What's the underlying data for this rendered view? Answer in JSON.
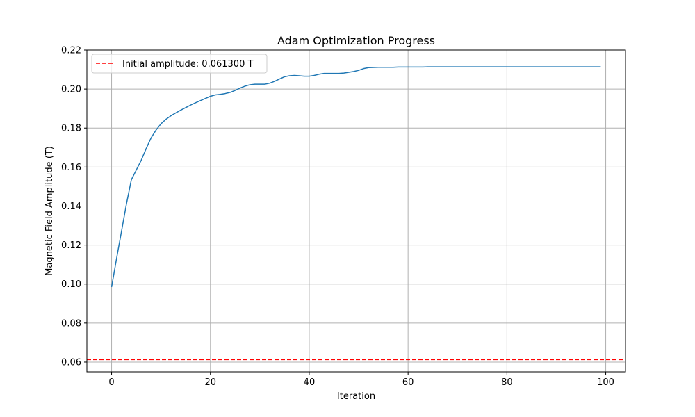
{
  "chart_data": {
    "type": "line",
    "title": "Adam Optimization Progress",
    "xlabel": "Iteration",
    "ylabel": "Magnetic Field Amplitude (T)",
    "xlim": [
      -5,
      104
    ],
    "ylim": [
      0.055,
      0.22
    ],
    "xticks": [
      0,
      20,
      40,
      60,
      80,
      100
    ],
    "xtick_labels": [
      "0",
      "20",
      "40",
      "60",
      "80",
      "100"
    ],
    "yticks": [
      0.06,
      0.08,
      0.1,
      0.12,
      0.14,
      0.16,
      0.18,
      0.2,
      0.22
    ],
    "ytick_labels": [
      "0.06",
      "0.08",
      "0.10",
      "0.12",
      "0.14",
      "0.16",
      "0.18",
      "0.20",
      "0.22"
    ],
    "grid": true,
    "legend_position": "top-left",
    "series": [
      {
        "color": "#1f77b4",
        "style": "solid",
        "x": [
          0,
          1,
          2,
          3,
          4,
          5,
          6,
          7,
          8,
          9,
          10,
          11,
          12,
          13,
          14,
          15,
          16,
          17,
          18,
          19,
          20,
          21,
          22,
          23,
          24,
          25,
          26,
          27,
          28,
          29,
          30,
          31,
          32,
          33,
          34,
          35,
          36,
          37,
          38,
          39,
          40,
          41,
          42,
          43,
          44,
          45,
          46,
          47,
          48,
          49,
          50,
          51,
          52,
          53,
          54,
          55,
          56,
          57,
          58,
          59,
          60,
          61,
          62,
          63,
          64,
          65,
          66,
          67,
          68,
          69,
          70,
          71,
          72,
          73,
          74,
          75,
          76,
          77,
          78,
          79,
          80,
          81,
          82,
          83,
          84,
          85,
          86,
          87,
          88,
          89,
          90,
          91,
          92,
          93,
          94,
          95,
          96,
          97,
          98,
          99
        ],
        "y": [
          0.0985,
          0.113,
          0.127,
          0.141,
          0.1535,
          0.1585,
          0.1635,
          0.1695,
          0.175,
          0.179,
          0.1822,
          0.1845,
          0.1863,
          0.1878,
          0.1892,
          0.1905,
          0.1918,
          0.193,
          0.1941,
          0.1952,
          0.1963,
          0.197,
          0.1973,
          0.1977,
          0.1983,
          0.1993,
          0.2005,
          0.2015,
          0.2022,
          0.2025,
          0.2025,
          0.2025,
          0.203,
          0.204,
          0.2052,
          0.2063,
          0.2068,
          0.207,
          0.2068,
          0.2066,
          0.2066,
          0.207,
          0.2076,
          0.208,
          0.208,
          0.208,
          0.208,
          0.2082,
          0.2086,
          0.209,
          0.2096,
          0.2105,
          0.211,
          0.2111,
          0.2112,
          0.2112,
          0.2112,
          0.2112,
          0.2113,
          0.2113,
          0.2113,
          0.2113,
          0.2113,
          0.2113,
          0.2114,
          0.2114,
          0.2114,
          0.2114,
          0.2114,
          0.2114,
          0.2114,
          0.2114,
          0.2114,
          0.2114,
          0.2114,
          0.2114,
          0.2114,
          0.2114,
          0.2114,
          0.2114,
          0.2114,
          0.2114,
          0.2114,
          0.2114,
          0.2114,
          0.2114,
          0.2114,
          0.2114,
          0.2114,
          0.2114,
          0.2114,
          0.2114,
          0.2114,
          0.2114,
          0.2114,
          0.2114,
          0.2114,
          0.2114,
          0.2114,
          0.2114
        ]
      },
      {
        "name": "Initial amplitude: 0.061300 T",
        "color": "#ff0000",
        "style": "dashed",
        "type": "hline",
        "y_value": 0.0613
      }
    ]
  }
}
